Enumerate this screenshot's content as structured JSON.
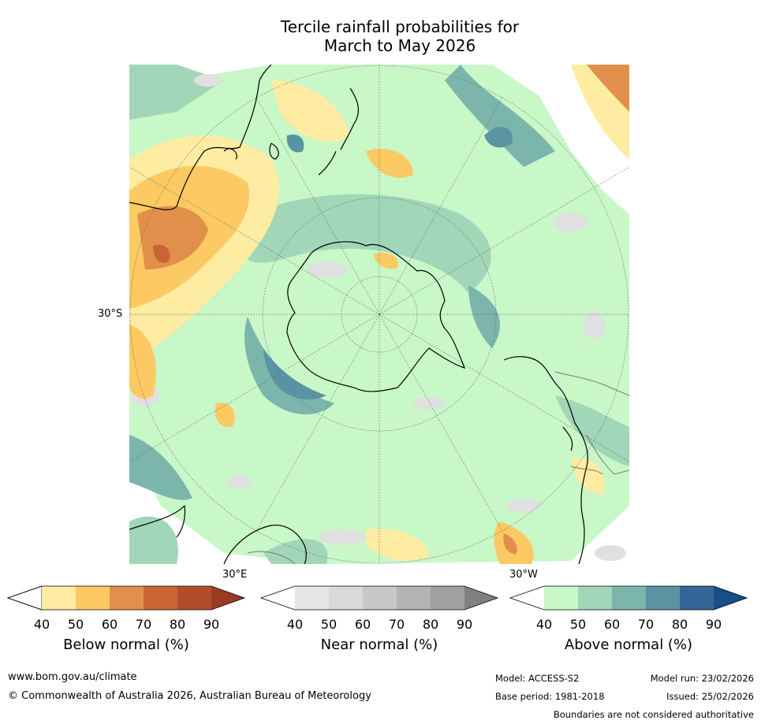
{
  "title": {
    "line1": "Tercile rainfall probabilities for",
    "line2": "March to May 2026"
  },
  "map": {
    "projection": "south-polar-stereographic",
    "lat_label": "30°S",
    "lon_labels": {
      "east": "30°E",
      "west": "30°W"
    }
  },
  "colorbars": [
    {
      "label": "Below normal (%)",
      "ticks": [
        "40",
        "50",
        "60",
        "70",
        "80",
        "90"
      ],
      "colors": [
        "#ffffff",
        "#fdeca2",
        "#fcc962",
        "#e0904a",
        "#c96534",
        "#b24d2c",
        "#9c3a24"
      ]
    },
    {
      "label": "Near normal (%)",
      "ticks": [
        "40",
        "50",
        "60",
        "70",
        "80",
        "90"
      ],
      "colors": [
        "#ffffff",
        "#e6e6e6",
        "#d9d9d9",
        "#c8c8c8",
        "#b4b4b4",
        "#a0a0a0",
        "#808080"
      ]
    },
    {
      "label": "Above normal (%)",
      "ticks": [
        "40",
        "50",
        "60",
        "70",
        "80",
        "90"
      ],
      "colors": [
        "#ffffff",
        "#c8f7c8",
        "#a2d6b8",
        "#7cb5ac",
        "#5a93a2",
        "#346698",
        "#174e8a"
      ]
    }
  ],
  "footer": {
    "website": "www.bom.gov.au/climate",
    "copyright": "© Commonwealth of Australia 2026, Australian Bureau of Meteorology",
    "model": "Model: ACCESS-S2",
    "model_run": "Model run: 23/02/2026",
    "base_period": "Base period: 1981-2018",
    "issued": "Issued: 25/02/2026",
    "disclaimer": "Boundaries are not considered authoritative"
  }
}
